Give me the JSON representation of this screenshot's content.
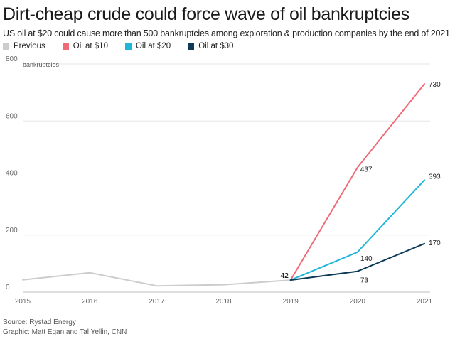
{
  "header": {
    "title": "Dirt-cheap crude could force wave of oil bankruptcies",
    "subtitle": "US oil at $20 could cause more than 500 bankruptcies among exploration & production companies by the end of 2021."
  },
  "footer": {
    "source": "Source: Rystad Energy",
    "credit": "Graphic: Matt Egan and Tal Yellin, CNN"
  },
  "chart_data": {
    "type": "line",
    "title": "Dirt-cheap crude could force wave of oil bankruptcies",
    "ylabel": "bankruptcies",
    "xlabel": "",
    "x": [
      2015,
      2016,
      2017,
      2018,
      2019,
      2020,
      2021
    ],
    "x_tick_labels": [
      "2015",
      "2016",
      "2017",
      "2018",
      "2019",
      "2020",
      "2021"
    ],
    "ylim": [
      0,
      800
    ],
    "y_ticks": [
      0,
      200,
      400,
      600,
      800
    ],
    "y_tick_labels": [
      "0",
      "200",
      "400",
      "600",
      "800"
    ],
    "grid": "horizontal",
    "legend_placement": "top-left",
    "series": [
      {
        "name": "Previous",
        "color": "#cccccc",
        "points": [
          [
            2015,
            43
          ],
          [
            2016,
            68
          ],
          [
            2017,
            22
          ],
          [
            2018,
            26
          ],
          [
            2019,
            42
          ]
        ]
      },
      {
        "name": "Oil at $10",
        "color": "#f06b78",
        "points": [
          [
            2019,
            42
          ],
          [
            2020,
            437
          ],
          [
            2021,
            730
          ]
        ]
      },
      {
        "name": "Oil at $20",
        "color": "#1fb6d8",
        "points": [
          [
            2019,
            42
          ],
          [
            2020,
            140
          ],
          [
            2021,
            393
          ]
        ]
      },
      {
        "name": "Oil at $30",
        "color": "#0c3a57",
        "points": [
          [
            2019,
            42
          ],
          [
            2020,
            73
          ],
          [
            2021,
            170
          ]
        ]
      }
    ],
    "data_labels": [
      {
        "text": "42",
        "x": 2019,
        "y": 42,
        "bold": true
      },
      {
        "text": "437",
        "x": 2020,
        "y": 437
      },
      {
        "text": "140",
        "x": 2020,
        "y": 140
      },
      {
        "text": "73",
        "x": 2020,
        "y": 73
      },
      {
        "text": "730",
        "x": 2021,
        "y": 730
      },
      {
        "text": "393",
        "x": 2021,
        "y": 393
      },
      {
        "text": "170",
        "x": 2021,
        "y": 170
      }
    ]
  }
}
